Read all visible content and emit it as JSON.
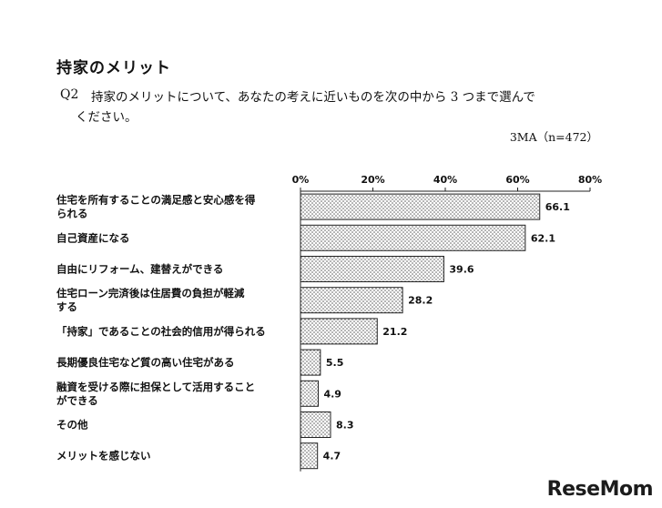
{
  "heading": "持家のメリット",
  "question": {
    "number": "Q2",
    "line1": "持家のメリットについて、あなたの考えに近いものを次の中から 3 つまで選んで",
    "line2": "ください。"
  },
  "sample_note": "3MA（n=472）",
  "brand": {
    "part1": "Rese",
    "part2": "Mom"
  },
  "colors": {
    "bar_border": "#222222",
    "bar_fill": "#ffffff",
    "dot": "#555555"
  },
  "chart_data": {
    "type": "bar",
    "orientation": "horizontal",
    "categories": [
      [
        "住宅を所有することの満足感と安心感を得",
        "られる"
      ],
      [
        "自己資産になる"
      ],
      [
        "自由にリフォーム、建替えができる"
      ],
      [
        "住宅ローン完済後は住居費の負担が軽減",
        "する"
      ],
      [
        "「持家」であることの社会的信用が得られる"
      ],
      [
        "長期優良住宅など質の高い住宅がある"
      ],
      [
        "融資を受ける際に担保として活用すること",
        "ができる"
      ],
      [
        "その他"
      ],
      [
        "メリットを感じない"
      ]
    ],
    "values": [
      66.1,
      62.1,
      39.6,
      28.2,
      21.2,
      5.5,
      4.9,
      8.3,
      4.7
    ],
    "xlim": [
      0,
      80
    ],
    "xticks": [
      "0%",
      "20%",
      "40%",
      "60%",
      "80%"
    ],
    "grid": false
  }
}
